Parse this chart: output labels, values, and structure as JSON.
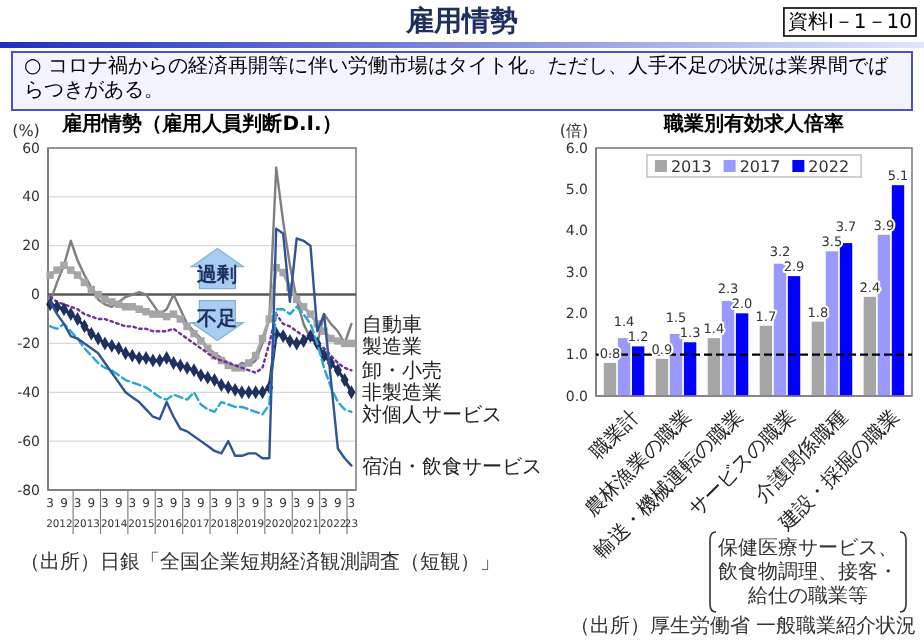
{
  "chart_data": [
    {
      "type": "other",
      "title": "雇用情勢",
      "subtitle": "○ コロナ禍からの経済再開等に伴い労働市場はタイト化。ただし、人手不足の状況は業界間でばらつきがある。",
      "annotations": [
        "資料Ⅰ－1－10"
      ]
    },
    {
      "type": "line",
      "title": "雇用情勢（雇用人員判断D.I.）",
      "ylabel": "(%)",
      "x": [
        "2012-03",
        "2012-06",
        "2012-09",
        "2012-12",
        "2013-03",
        "2013-06",
        "2013-09",
        "2013-12",
        "2014-03",
        "2014-06",
        "2014-09",
        "2014-12",
        "2015-03",
        "2015-06",
        "2015-09",
        "2015-12",
        "2016-03",
        "2016-06",
        "2016-09",
        "2016-12",
        "2017-03",
        "2017-06",
        "2017-09",
        "2017-12",
        "2018-03",
        "2018-06",
        "2018-09",
        "2018-12",
        "2019-03",
        "2019-06",
        "2019-09",
        "2019-12",
        "2020-03",
        "2020-06",
        "2020-09",
        "2020-12",
        "2021-03",
        "2021-06",
        "2021-09",
        "2021-12",
        "2022-03",
        "2022-06",
        "2022-09",
        "2022-12",
        "2023-03"
      ],
      "series": [
        {
          "name": "自動車",
          "color": "#7f7f7f",
          "line_style": "solid",
          "values": [
            -3,
            5,
            12,
            22,
            14,
            8,
            3,
            -2,
            -4,
            -5,
            -3,
            -1,
            0,
            1,
            0,
            -4,
            -8,
            -6,
            0,
            -6,
            -12,
            -15,
            -18,
            -22,
            -24,
            -26,
            -28,
            -30,
            -28,
            -29,
            -27,
            -20,
            -10,
            52,
            30,
            12,
            -2,
            -12,
            -18,
            -20,
            -8,
            -12,
            -15,
            -20,
            -12
          ]
        },
        {
          "name": "製造業",
          "color": "#a6a6a6",
          "line_style": "solid",
          "marker": "square",
          "values": [
            8,
            10,
            12,
            10,
            8,
            5,
            2,
            0,
            -2,
            -3,
            -4,
            -5,
            -5,
            -6,
            -7,
            -8,
            -8,
            -9,
            -8,
            -10,
            -13,
            -16,
            -19,
            -22,
            -25,
            -27,
            -29,
            -30,
            -30,
            -28,
            -25,
            -18,
            -10,
            11,
            9,
            3,
            -2,
            -5,
            -8,
            -12,
            -15,
            -18,
            -19,
            -20,
            -20
          ]
        },
        {
          "name": "卸・小売",
          "color": "#7030a0",
          "line_style": "dotted",
          "values": [
            -1,
            -3,
            -4,
            -5,
            -6,
            -8,
            -9,
            -10,
            -10,
            -11,
            -12,
            -13,
            -13,
            -14,
            -14,
            -15,
            -15,
            -15,
            -14,
            -16,
            -18,
            -20,
            -22,
            -24,
            -26,
            -27,
            -28,
            -29,
            -30,
            -31,
            -32,
            -30,
            -20,
            -8,
            -12,
            -13,
            -15,
            -17,
            -18,
            -20,
            -22,
            -25,
            -28,
            -30,
            -31
          ]
        },
        {
          "name": "非製造業",
          "color": "#1f2f5f",
          "line_style": "solid",
          "marker": "diamond",
          "values": [
            -4,
            -5,
            -6,
            -8,
            -10,
            -13,
            -16,
            -18,
            -20,
            -21,
            -22,
            -24,
            -25,
            -26,
            -26,
            -27,
            -27,
            -26,
            -28,
            -29,
            -30,
            -31,
            -33,
            -34,
            -35,
            -37,
            -38,
            -39,
            -40,
            -40,
            -40,
            -40,
            -38,
            -16,
            -17,
            -19,
            -20,
            -19,
            -17,
            -20,
            -25,
            -28,
            -31,
            -35,
            -40
          ]
        },
        {
          "name": "対個人サービス",
          "color": "#2aa5d6",
          "line_style": "dashed",
          "values": [
            -13,
            -14,
            -12,
            -15,
            -18,
            -22,
            -25,
            -28,
            -30,
            -31,
            -33,
            -35,
            -36,
            -37,
            -38,
            -40,
            -42,
            -43,
            -41,
            -42,
            -43,
            -40,
            -45,
            -47,
            -48,
            -44,
            -45,
            -46,
            -46,
            -47,
            -48,
            -49,
            -45,
            -6,
            -6,
            -8,
            -5,
            -8,
            -12,
            -20,
            -30,
            -38,
            -44,
            -47,
            -48
          ]
        },
        {
          "name": "宿泊・飲食サービス",
          "color": "#2f5597",
          "line_style": "solid",
          "values": [
            -3,
            -8,
            -12,
            -17,
            -18,
            -20,
            -22,
            -24,
            -28,
            -32,
            -36,
            -40,
            -42,
            -44,
            -47,
            -50,
            -51,
            -44,
            -50,
            -55,
            -56,
            -58,
            -60,
            -62,
            -64,
            -65,
            -60,
            -66,
            -66,
            -65,
            -65,
            -67,
            -67,
            27,
            25,
            -3,
            23,
            22,
            20,
            -15,
            -8,
            -35,
            -63,
            -67,
            -70
          ]
        }
      ],
      "xlim": [
        "2012-02",
        "2023-05"
      ],
      "xticks": [
        {
          "value": "2012-03",
          "label": "3"
        },
        {
          "value": "2012-09",
          "label": "9"
        },
        {
          "value": "2013-03",
          "label": "3"
        },
        {
          "value": "2013-09",
          "label": "9"
        },
        {
          "value": "2014-03",
          "label": "3"
        },
        {
          "value": "2014-09",
          "label": "9"
        },
        {
          "value": "2015-03",
          "label": "3"
        },
        {
          "value": "2015-09",
          "label": "9"
        },
        {
          "value": "2016-03",
          "label": "3"
        },
        {
          "value": "2016-09",
          "label": "9"
        },
        {
          "value": "2017-03",
          "label": "3"
        },
        {
          "value": "2017-09",
          "label": "9"
        },
        {
          "value": "2018-03",
          "label": "3"
        },
        {
          "value": "2018-09",
          "label": "9"
        },
        {
          "value": "2019-03",
          "label": "3"
        },
        {
          "value": "2019-09",
          "label": "9"
        },
        {
          "value": "2020-03",
          "label": "3"
        },
        {
          "value": "2020-09",
          "label": "9"
        },
        {
          "value": "2021-03",
          "label": "3"
        },
        {
          "value": "2021-09",
          "label": "9"
        },
        {
          "value": "2022-03",
          "label": "3"
        },
        {
          "value": "2022-09",
          "label": "9"
        },
        {
          "value": "2023-03",
          "label": "3"
        }
      ],
      "x2lim": [
        "2012-02",
        "2023-05"
      ],
      "x2ticks": [
        {
          "value": "2012-07",
          "label": "2012"
        },
        {
          "value": "2013-07",
          "label": "2013"
        },
        {
          "value": "2014-07",
          "label": "2014"
        },
        {
          "value": "2015-07",
          "label": "2015"
        },
        {
          "value": "2016-07",
          "label": "2016"
        },
        {
          "value": "2017-07",
          "label": "2017"
        },
        {
          "value": "2018-07",
          "label": "2018"
        },
        {
          "value": "2019-07",
          "label": "2019"
        },
        {
          "value": "2020-07",
          "label": "2020"
        },
        {
          "value": "2021-07",
          "label": "2021"
        },
        {
          "value": "2022-07",
          "label": "2022"
        },
        {
          "value": "2023-03",
          "label": "23"
        }
      ],
      "ylim": [
        -80,
        60
      ],
      "yticks": [
        -80,
        -60,
        -40,
        -20,
        0,
        20,
        40,
        60
      ],
      "grid": "y",
      "legend": false,
      "ref_lines": [
        {
          "axis": "y",
          "value": 0,
          "color": "#595959"
        }
      ],
      "annotations": [
        "過剰",
        "不足",
        "（出所）日銀「全国企業短期経済観測調査（短観）」"
      ]
    },
    {
      "type": "bar",
      "title": "職業別有効求人倍率",
      "ylabel": "(倍)",
      "categories": [
        "職業計",
        "農林漁業の職業",
        "輸送・機械運転の職業",
        "サービスの職業",
        "介護関係職種",
        "建設・採掘の職業"
      ],
      "series": [
        {
          "name": "2013",
          "color": "#a6a6a6",
          "values": [
            0.8,
            0.9,
            1.4,
            1.7,
            1.8,
            2.4
          ],
          "value_labels": [
            "0.8",
            "0.9",
            "1.4",
            "1.7",
            "1.8",
            "2.4"
          ]
        },
        {
          "name": "2017",
          "color": "#9999ff",
          "values": [
            1.4,
            1.5,
            2.3,
            3.2,
            3.5,
            3.9
          ],
          "value_labels": [
            "1.4",
            "1.5",
            "2.3",
            "3.2",
            "3.5",
            "3.9"
          ]
        },
        {
          "name": "2022",
          "color": "#0000ff",
          "values": [
            1.2,
            1.3,
            2.0,
            2.9,
            3.7,
            5.1
          ],
          "value_labels": [
            "1.2",
            "1.3",
            "2.0",
            "2.9",
            "3.7",
            "5.1"
          ]
        }
      ],
      "ylim": [
        0,
        6
      ],
      "yticks": [
        {
          "value": 0,
          "label": "0.0"
        },
        {
          "value": 1,
          "label": "1.0"
        },
        {
          "value": 2,
          "label": "2.0"
        },
        {
          "value": 3,
          "label": "3.0"
        },
        {
          "value": 4,
          "label": "4.0"
        },
        {
          "value": 5,
          "label": "5.0"
        },
        {
          "value": 6,
          "label": "6.0"
        }
      ],
      "legend": "top",
      "ref_lines": [
        {
          "axis": "y",
          "value": 1,
          "color": "#000000",
          "line_style": "dashed"
        }
      ],
      "annotations": [
        "保健医療サービス、飲食物調理、接客・給仕の職業等",
        "（出所）厚生労働省 一般職業紹介状況"
      ]
    }
  ]
}
